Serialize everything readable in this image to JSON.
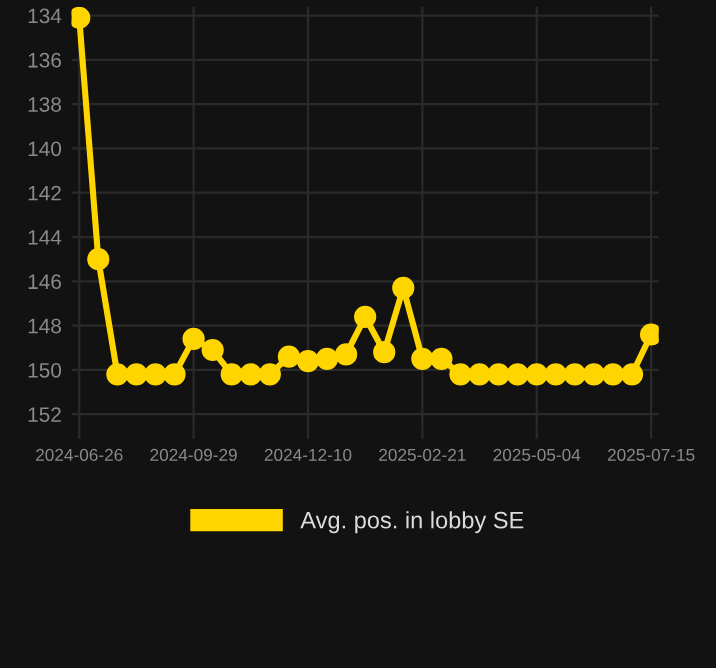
{
  "chart_data": {
    "type": "line",
    "categories": [
      "2024-06-26",
      null,
      null,
      null,
      null,
      null,
      "2024-09-29",
      null,
      null,
      null,
      null,
      null,
      "2024-12-10",
      null,
      null,
      null,
      null,
      null,
      "2025-02-21",
      null,
      null,
      null,
      null,
      null,
      "2025-05-04",
      null,
      null,
      null,
      null,
      null,
      "2025-07-15"
    ],
    "series": [
      {
        "name": "Avg. pos. in lobby SE",
        "color": "#ffd500",
        "values": [
          134.1,
          145.0,
          150.2,
          150.2,
          150.2,
          150.2,
          148.6,
          149.1,
          150.2,
          150.2,
          150.2,
          149.4,
          149.6,
          149.5,
          149.3,
          147.6,
          149.2,
          146.3,
          149.5,
          149.5,
          150.2,
          150.2,
          150.2,
          150.2,
          150.2,
          150.2,
          150.2,
          150.2,
          150.2,
          150.2,
          148.4
        ]
      }
    ],
    "ylim": [
      152.6,
      133.6
    ],
    "yticks": [
      134,
      136,
      138,
      140,
      142,
      144,
      146,
      148,
      150,
      152
    ],
    "grid": true,
    "legend": "bottom",
    "marker": "circle",
    "line_style": "solid"
  }
}
